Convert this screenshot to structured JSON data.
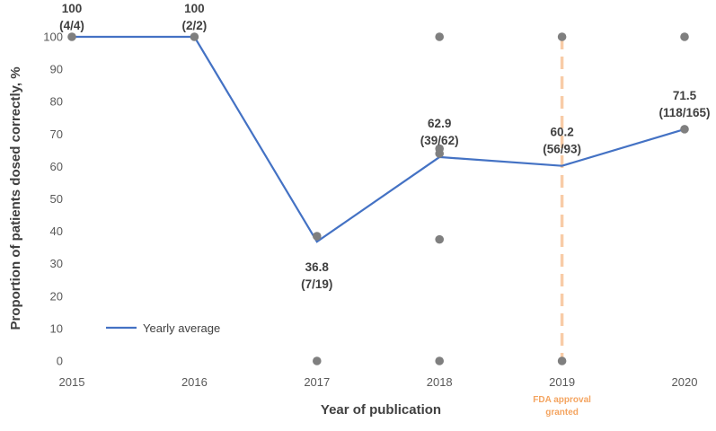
{
  "chart_data": {
    "type": "line",
    "xlabel": "Year of publication",
    "ylabel": "Proportion of patients dosed correctly, %",
    "x_ticks": [
      "2015",
      "2016",
      "2017",
      "2018",
      "2019",
      "2020"
    ],
    "y_ticks": [
      "0",
      "10",
      "20",
      "30",
      "40",
      "50",
      "60",
      "70",
      "80",
      "90",
      "100"
    ],
    "xlim": [
      2015,
      2020
    ],
    "ylim": [
      0,
      100
    ],
    "grid": false,
    "series": [
      {
        "name": "Yearly average",
        "color": "#4472c4",
        "x": [
          2015,
          2016,
          2017,
          2018,
          2019,
          2020
        ],
        "y": [
          100,
          100,
          36.8,
          62.9,
          60.2,
          71.5
        ]
      }
    ],
    "study_points": {
      "color": "#7f7f7f",
      "points": [
        {
          "x": 2015,
          "y": 100
        },
        {
          "x": 2016,
          "y": 100
        },
        {
          "x": 2017,
          "y": 38.5
        },
        {
          "x": 2017,
          "y": 0
        },
        {
          "x": 2018,
          "y": 100
        },
        {
          "x": 2018,
          "y": 65.5
        },
        {
          "x": 2018,
          "y": 64
        },
        {
          "x": 2018,
          "y": 37.5
        },
        {
          "x": 2018,
          "y": 0
        },
        {
          "x": 2019,
          "y": 100
        },
        {
          "x": 2019,
          "y": 0
        },
        {
          "x": 2020,
          "y": 100
        },
        {
          "x": 2020,
          "y": 71.5
        }
      ]
    },
    "data_labels": [
      {
        "x": 2015,
        "lines": [
          "100",
          "(4/4)"
        ],
        "position": "above"
      },
      {
        "x": 2016,
        "lines": [
          "100",
          "(2/2)"
        ],
        "position": "above"
      },
      {
        "x": 2017,
        "lines": [
          "36.8",
          "(7/19)"
        ],
        "position": "below"
      },
      {
        "x": 2018,
        "lines": [
          "62.9",
          "(39/62)"
        ],
        "position": "above"
      },
      {
        "x": 2019,
        "lines": [
          "60.2",
          "(56/93)"
        ],
        "position": "above"
      },
      {
        "x": 2020,
        "lines": [
          "71.5",
          "(118/165)"
        ],
        "position": "above"
      }
    ],
    "annotation": {
      "x": 2019,
      "lines": [
        "FDA approval",
        "granted"
      ],
      "color": "#f4a460"
    },
    "legend": {
      "label": "Yearly average",
      "placement": "bottom-left"
    }
  }
}
